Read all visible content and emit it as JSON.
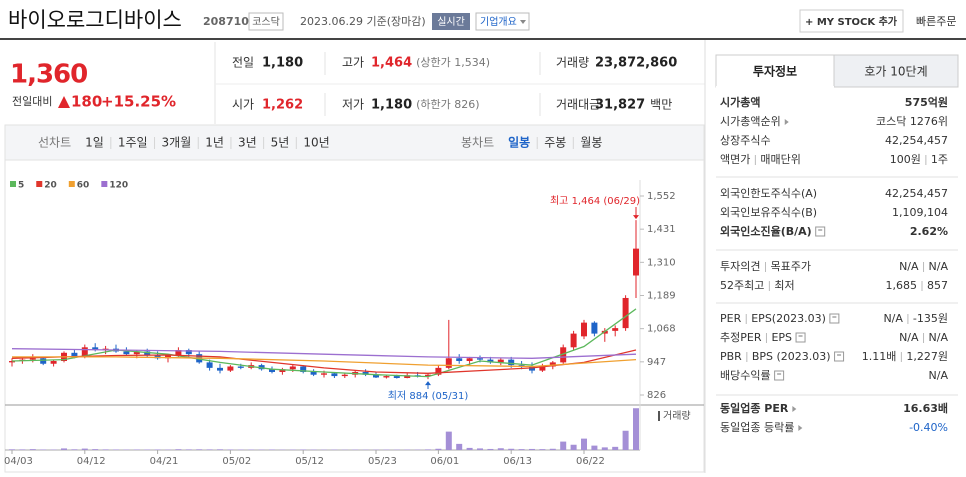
{
  "header": {
    "name": "바이오로그디바이스",
    "code": "208710",
    "market": "코스닥",
    "date": "2023.06.29 기준(장마감)",
    "realtime": "실시간",
    "overview": "기업개요",
    "mystock": "+ MY STOCK 추가",
    "quick_order": "빠른주문"
  },
  "price": {
    "current": "1,360",
    "change_label": "전일대비",
    "change": "180",
    "change_rate": "+15.25%"
  },
  "summary": [
    {
      "label": "전일",
      "value": "1,180"
    },
    {
      "label": "고가",
      "value": "1,464",
      "note": "(상한가 1,534)"
    },
    {
      "label": "거래량",
      "value": "23,872,860"
    },
    {
      "label": "시가",
      "value": "1,262"
    },
    {
      "label": "저가",
      "value": "1,180",
      "note": "(하한가 826)"
    },
    {
      "label": "거래대금",
      "value": "31,827",
      "unit": "백만"
    }
  ],
  "periods": [
    "선차트",
    "1일",
    "1주일",
    "3개월",
    "1년",
    "3년",
    "5년",
    "10년"
  ],
  "candle_periods": [
    "봉차트",
    "일봉",
    "주봉",
    "월봉"
  ],
  "chart_data": {
    "type": "candlestick",
    "categories": [
      "04/03",
      null,
      null,
      null,
      null,
      null,
      null,
      "04/12",
      null,
      null,
      null,
      null,
      null,
      null,
      "04/21",
      null,
      null,
      null,
      null,
      null,
      null,
      "05/02",
      null,
      null,
      null,
      null,
      null,
      null,
      "05/12",
      null,
      null,
      null,
      null,
      null,
      null,
      "05/23",
      null,
      null,
      null,
      null,
      null,
      "06/01",
      null,
      null,
      null,
      null,
      null,
      null,
      "06/13",
      null,
      null,
      null,
      null,
      null,
      null,
      "06/22",
      null,
      null,
      null,
      null,
      null
    ],
    "open": [
      945,
      950,
      955,
      960,
      940,
      950,
      980,
      965,
      1000,
      990,
      995,
      985,
      975,
      985,
      970,
      960,
      970,
      990,
      975,
      945,
      925,
      915,
      930,
      925,
      935,
      920,
      910,
      920,
      930,
      910,
      900,
      905,
      895,
      900,
      910,
      900,
      890,
      895,
      888,
      898,
      895,
      900,
      925,
      960,
      950,
      960,
      955,
      945,
      955,
      935,
      930,
      915,
      930,
      945,
      1000,
      1040,
      1090,
      1050,
      1060,
      1070,
      1262
    ],
    "high": [
      960,
      965,
      975,
      965,
      955,
      985,
      990,
      1010,
      1015,
      1005,
      1010,
      1000,
      990,
      995,
      985,
      975,
      1000,
      995,
      985,
      955,
      940,
      935,
      940,
      945,
      940,
      930,
      925,
      935,
      935,
      920,
      915,
      910,
      905,
      915,
      920,
      910,
      900,
      900,
      905,
      910,
      905,
      935,
      1100,
      975,
      965,
      970,
      965,
      960,
      965,
      950,
      945,
      940,
      950,
      1010,
      1060,
      1100,
      1095,
      1070,
      1080,
      1190,
      1464
    ],
    "low": [
      930,
      940,
      945,
      935,
      930,
      945,
      960,
      960,
      985,
      975,
      980,
      970,
      960,
      965,
      955,
      945,
      965,
      965,
      940,
      915,
      905,
      910,
      920,
      920,
      915,
      905,
      900,
      910,
      905,
      895,
      890,
      888,
      888,
      890,
      895,
      888,
      886,
      886,
      887,
      890,
      884,
      895,
      920,
      940,
      935,
      945,
      940,
      935,
      925,
      920,
      905,
      910,
      920,
      940,
      990,
      1030,
      1040,
      1020,
      1040,
      1060,
      1180
    ],
    "close": [
      950,
      955,
      960,
      940,
      950,
      980,
      965,
      1000,
      990,
      995,
      985,
      975,
      985,
      970,
      960,
      970,
      990,
      975,
      945,
      925,
      915,
      930,
      925,
      935,
      920,
      910,
      920,
      930,
      910,
      900,
      905,
      895,
      900,
      910,
      900,
      890,
      895,
      888,
      898,
      895,
      900,
      925,
      960,
      950,
      960,
      955,
      945,
      955,
      935,
      930,
      915,
      930,
      945,
      1000,
      1050,
      1090,
      1050,
      1060,
      1070,
      1180,
      1360
    ],
    "volume": [
      400000,
      350000,
      500000,
      300000,
      250000,
      900000,
      400000,
      800000,
      500000,
      350000,
      300000,
      250000,
      300000,
      280000,
      300000,
      250000,
      450000,
      350000,
      400000,
      350000,
      400000,
      300000,
      250000,
      280000,
      250000,
      300000,
      220000,
      250000,
      300000,
      250000,
      220000,
      250000,
      200000,
      250000,
      220000,
      200000,
      250000,
      230000,
      260000,
      240000,
      350000,
      700000,
      10500000,
      3500000,
      1200000,
      900000,
      600000,
      1000000,
      700000,
      500000,
      600000,
      500000,
      700000,
      4800000,
      3000000,
      6500000,
      2500000,
      1500000,
      1800000,
      11000000,
      23872860
    ],
    "ylim": [
      826,
      1552
    ],
    "yticks": [
      826,
      947,
      {
        "value": 1068,
        "label": "1,068"
      },
      {
        "value": 1189,
        "label": "1,189"
      },
      {
        "value": 1310,
        "label": "1,310"
      },
      {
        "value": 1431,
        "label": "1,431"
      },
      {
        "value": 1552,
        "label": "1,552"
      }
    ],
    "vlim": [
      0,
      24000000
    ],
    "volume_label": "거래량",
    "up_color": "#e0252b",
    "down_color": "#1e64c8",
    "volume_color": "#a48fd6",
    "high_label": "최고 1,464 (06/29)",
    "low_label": "최저 884 (05/31)",
    "moving_averages": [
      {
        "name": "5",
        "color": "#5cb85c",
        "x": [
          0,
          5,
          10,
          15,
          20,
          25,
          30,
          35,
          40,
          45,
          50,
          55,
          60
        ],
        "values": [
          950,
          955,
          990,
          975,
          945,
          920,
          910,
          900,
          893,
          950,
          935,
          1003,
          1140
        ]
      },
      {
        "name": "20",
        "color": "#e0352b",
        "x": [
          0,
          5,
          10,
          15,
          20,
          25,
          30,
          35,
          40,
          45,
          50,
          55,
          60
        ],
        "values": [
          960,
          965,
          970,
          972,
          965,
          945,
          925,
          910,
          905,
          915,
          925,
          945,
          990
        ]
      },
      {
        "name": "60",
        "color": "#f0a030",
        "x": [
          0,
          10,
          20,
          30,
          40,
          50,
          60
        ],
        "values": [
          965,
          965,
          960,
          950,
          935,
          930,
          955
        ]
      },
      {
        "name": "120",
        "color": "#9c6fd0",
        "x": [
          0,
          10,
          20,
          30,
          40,
          50,
          60
        ],
        "values": [
          995,
          990,
          985,
          975,
          965,
          960,
          975
        ]
      }
    ]
  },
  "info_tabs": [
    "투자정보",
    "호가 10단계"
  ],
  "info": [
    [
      {
        "label": [
          "시가총액"
        ],
        "value": [
          "575억원"
        ],
        "bold": true
      },
      {
        "label": [
          "시가총액순위"
        ],
        "icon": "arrow",
        "value": [
          "코스닥 1276위"
        ]
      },
      {
        "label": [
          "상장주식수"
        ],
        "value": [
          "42,254,457"
        ]
      },
      {
        "label": [
          "액면가",
          "매매단위"
        ],
        "value": [
          "100원",
          "1주"
        ]
      }
    ],
    [
      {
        "label": [
          "외국인한도주식수(A)"
        ],
        "value": [
          "42,254,457"
        ]
      },
      {
        "label": [
          "외국인보유주식수(B)"
        ],
        "value": [
          "1,109,104"
        ]
      },
      {
        "label": [
          "외국인소진율(B/A)"
        ],
        "icon": "help",
        "value": [
          "2.62%"
        ],
        "bold": true
      }
    ],
    [
      {
        "label": [
          "투자의견",
          "목표주가"
        ],
        "value": [
          "N/A",
          "N/A"
        ]
      },
      {
        "label": [
          "52주최고",
          "최저"
        ],
        "value": [
          "1,685",
          "857"
        ]
      }
    ],
    [
      {
        "label": [
          "PER",
          "EPS(2023.03)"
        ],
        "icon": "help",
        "value": [
          "N/A",
          "-135원"
        ]
      },
      {
        "label": [
          "추정PER",
          "EPS"
        ],
        "icon": "help",
        "value": [
          "N/A",
          "N/A"
        ]
      },
      {
        "label": [
          "PBR",
          "BPS (2023.03)"
        ],
        "icon": "help",
        "value": [
          "1.11배",
          "1,227원"
        ]
      },
      {
        "label": [
          "배당수익률"
        ],
        "icon": "help",
        "value": [
          "N/A"
        ]
      }
    ],
    [
      {
        "label": [
          "동일업종 PER"
        ],
        "icon": "arrow",
        "value": [
          "16.63배"
        ],
        "bold": true
      },
      {
        "label": [
          "동일업종 등락률"
        ],
        "icon": "arrow",
        "value": [
          "-0.40%"
        ],
        "color": "#1e64c8"
      }
    ]
  ]
}
